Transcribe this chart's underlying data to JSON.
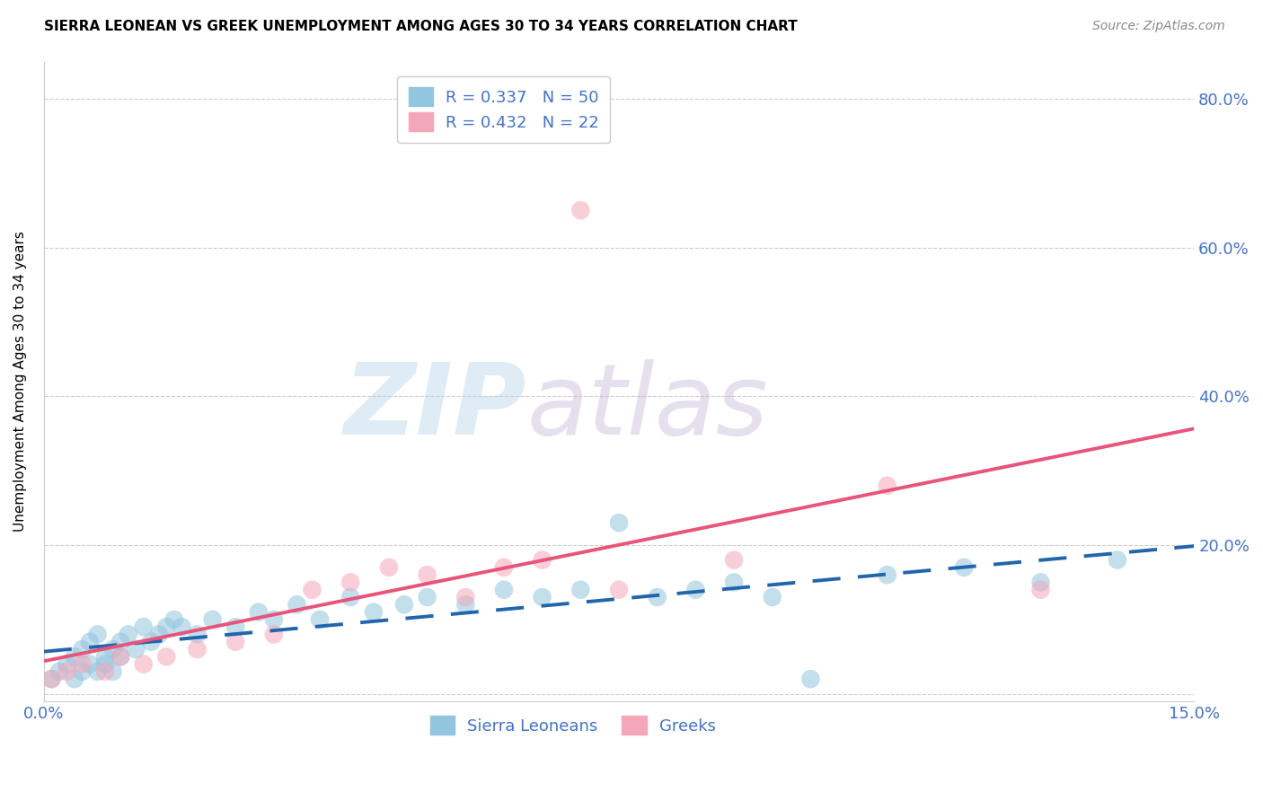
{
  "title": "SIERRA LEONEAN VS GREEK UNEMPLOYMENT AMONG AGES 30 TO 34 YEARS CORRELATION CHART",
  "source": "Source: ZipAtlas.com",
  "ylabel": "Unemployment Among Ages 30 to 34 years",
  "xlim": [
    0.0,
    0.15
  ],
  "ylim": [
    -0.01,
    0.85
  ],
  "xticks": [
    0.0,
    0.05,
    0.1,
    0.15
  ],
  "xtick_labels": [
    "0.0%",
    "",
    "",
    "15.0%"
  ],
  "yticks": [
    0.0,
    0.2,
    0.4,
    0.6,
    0.8
  ],
  "ytick_labels": [
    "",
    "20.0%",
    "40.0%",
    "60.0%",
    "80.0%"
  ],
  "legend_r1": "R = 0.337",
  "legend_n1": "N = 50",
  "legend_r2": "R = 0.432",
  "legend_n2": "N = 22",
  "color_blue": "#92c5de",
  "color_pink": "#f4a7b9",
  "color_blue_line": "#2166ac",
  "color_pink_line": "#e8547a",
  "color_axis_text": "#4472c4",
  "sierra_x": [
    0.001,
    0.002,
    0.003,
    0.004,
    0.004,
    0.005,
    0.005,
    0.006,
    0.006,
    0.007,
    0.007,
    0.008,
    0.008,
    0.009,
    0.009,
    0.01,
    0.01,
    0.011,
    0.012,
    0.013,
    0.014,
    0.015,
    0.016,
    0.017,
    0.018,
    0.02,
    0.022,
    0.025,
    0.028,
    0.03,
    0.033,
    0.036,
    0.04,
    0.043,
    0.047,
    0.05,
    0.055,
    0.06,
    0.065,
    0.07,
    0.075,
    0.08,
    0.085,
    0.09,
    0.095,
    0.1,
    0.11,
    0.12,
    0.13,
    0.14
  ],
  "sierra_y": [
    0.02,
    0.03,
    0.04,
    0.02,
    0.05,
    0.03,
    0.06,
    0.04,
    0.07,
    0.03,
    0.08,
    0.04,
    0.05,
    0.06,
    0.03,
    0.07,
    0.05,
    0.08,
    0.06,
    0.09,
    0.07,
    0.08,
    0.09,
    0.1,
    0.09,
    0.08,
    0.1,
    0.09,
    0.11,
    0.1,
    0.12,
    0.1,
    0.13,
    0.11,
    0.12,
    0.13,
    0.12,
    0.14,
    0.13,
    0.14,
    0.23,
    0.13,
    0.14,
    0.15,
    0.13,
    0.02,
    0.16,
    0.17,
    0.15,
    0.18
  ],
  "greek_x": [
    0.001,
    0.003,
    0.005,
    0.008,
    0.01,
    0.013,
    0.016,
    0.02,
    0.025,
    0.03,
    0.035,
    0.04,
    0.045,
    0.05,
    0.055,
    0.06,
    0.065,
    0.07,
    0.075,
    0.09,
    0.11,
    0.13
  ],
  "greek_y": [
    0.02,
    0.03,
    0.04,
    0.03,
    0.05,
    0.04,
    0.05,
    0.06,
    0.07,
    0.08,
    0.14,
    0.15,
    0.17,
    0.16,
    0.13,
    0.17,
    0.18,
    0.65,
    0.14,
    0.18,
    0.28,
    0.14
  ]
}
